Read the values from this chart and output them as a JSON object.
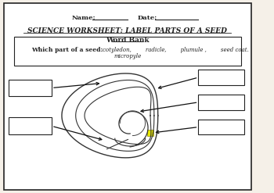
{
  "bg_color": "#f5f0e8",
  "border_color": "#222222",
  "title_line1": "SCIENCE WORKSHEET: LABEL PARTS OF A SEED",
  "name_label": "Name:",
  "date_label": "Date:",
  "word_bank_title": "Word Bank",
  "word_bank_prompt": "Which part of a seed:",
  "word_bank_words": "cotyledon,        radicle,        plumule ,        seed coat.",
  "word_bank_words2": "micropyle",
  "micropyle_color": "#e8e800",
  "line_color": "#111111"
}
